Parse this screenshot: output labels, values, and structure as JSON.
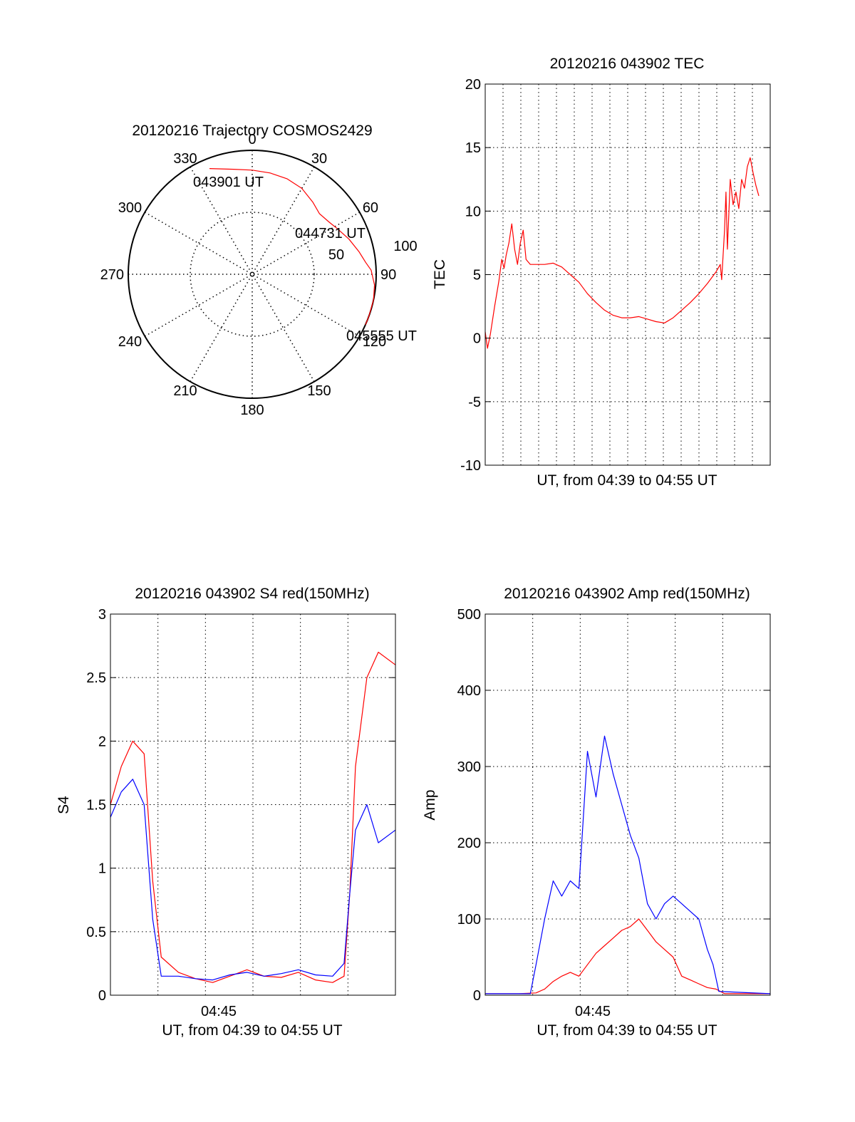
{
  "colors": {
    "red": "#ff0000",
    "blue": "#0000ff",
    "axis": "#000000",
    "grid": "#000000"
  },
  "chart_data": [
    {
      "id": "trajectory",
      "type": "polar",
      "title": "20120216 Trajectory COSMOS2429",
      "azimuth_ticks": [
        "0",
        "30",
        "60",
        "90",
        "120",
        "150",
        "180",
        "210",
        "240",
        "270",
        "300",
        "330"
      ],
      "radius_ticks": [
        "50",
        "100"
      ],
      "rlim": [
        0,
        100
      ],
      "grid": true,
      "series": [
        {
          "color": "red",
          "points": [
            [
              -22,
              92
            ],
            [
              -10,
              86
            ],
            [
              0,
              84
            ],
            [
              10,
              83
            ],
            [
              20,
              82
            ],
            [
              30,
              80
            ],
            [
              40,
              76
            ],
            [
              48,
              73
            ],
            [
              56,
              75
            ],
            [
              62,
              78
            ],
            [
              70,
              83
            ],
            [
              78,
              88
            ],
            [
              84,
              92
            ],
            [
              88,
              96
            ],
            [
              95,
              99
            ],
            [
              102,
              100
            ],
            [
              110,
              100
            ],
            [
              114,
              100
            ]
          ]
        }
      ],
      "annotations": [
        {
          "text": "043901 UT",
          "az": -18,
          "r": 98
        },
        {
          "text": "044731 UT",
          "az": 40,
          "r": 80
        },
        {
          "text": "045555 UT",
          "az": 113,
          "r": 102
        }
      ]
    },
    {
      "id": "tec",
      "type": "line",
      "title": "20120216 043902 TEC",
      "ylabel": "TEC",
      "xlabel": "UT, from 04:39 to 04:55 UT",
      "xlim": [
        "04:39:02",
        "04:55:40"
      ],
      "ylim": [
        -10,
        20
      ],
      "yticks": [
        "-10",
        "-5",
        "0",
        "5",
        "10",
        "15",
        "20"
      ],
      "xticks": [],
      "grid": true,
      "series": [
        {
          "color": "red",
          "points": [
            [
              "04:39:02",
              0.5
            ],
            [
              "04:39:10",
              -0.8
            ],
            [
              "04:39:20",
              0.3
            ],
            [
              "04:39:35",
              2.5
            ],
            [
              "04:39:50",
              4.5
            ],
            [
              "04:40:00",
              6.2
            ],
            [
              "04:40:08",
              5.5
            ],
            [
              "04:40:15",
              6.5
            ],
            [
              "04:40:25",
              7.5
            ],
            [
              "04:40:35",
              9.0
            ],
            [
              "04:40:45",
              7.0
            ],
            [
              "04:40:55",
              5.8
            ],
            [
              "04:41:05",
              7.5
            ],
            [
              "04:41:15",
              8.5
            ],
            [
              "04:41:25",
              6.2
            ],
            [
              "04:41:40",
              5.8
            ],
            [
              "04:42:30",
              5.8
            ],
            [
              "04:43:00",
              5.9
            ],
            [
              "04:43:30",
              5.6
            ],
            [
              "04:44:00",
              5.0
            ],
            [
              "04:44:30",
              4.4
            ],
            [
              "04:45:00",
              3.5
            ],
            [
              "04:45:30",
              2.8
            ],
            [
              "04:46:00",
              2.2
            ],
            [
              "04:46:30",
              1.8
            ],
            [
              "04:47:00",
              1.6
            ],
            [
              "04:47:30",
              1.6
            ],
            [
              "04:48:00",
              1.7
            ],
            [
              "04:48:30",
              1.5
            ],
            [
              "04:49:00",
              1.3
            ],
            [
              "04:49:30",
              1.2
            ],
            [
              "04:50:00",
              1.6
            ],
            [
              "04:50:30",
              2.2
            ],
            [
              "04:51:00",
              2.8
            ],
            [
              "04:51:30",
              3.5
            ],
            [
              "04:52:00",
              4.3
            ],
            [
              "04:52:30",
              5.2
            ],
            [
              "04:52:45",
              5.8
            ],
            [
              "04:52:50",
              4.6
            ],
            [
              "04:53:00",
              8.5
            ],
            [
              "04:53:05",
              11.5
            ],
            [
              "04:53:10",
              7.0
            ],
            [
              "04:53:20",
              12.5
            ],
            [
              "04:53:30",
              10.5
            ],
            [
              "04:53:40",
              11.5
            ],
            [
              "04:53:50",
              10.2
            ],
            [
              "04:54:00",
              12.5
            ],
            [
              "04:54:10",
              11.8
            ],
            [
              "04:54:20",
              13.5
            ],
            [
              "04:54:30",
              14.2
            ],
            [
              "04:54:40",
              13.0
            ],
            [
              "04:54:50",
              12.0
            ],
            [
              "04:55:00",
              11.2
            ]
          ]
        }
      ]
    },
    {
      "id": "s4",
      "type": "line",
      "title": "20120216 043902 S4 red(150MHz)",
      "ylabel": "S4",
      "xlabel": "UT, from 04:39 to 04:55 UT",
      "xlim": [
        "04:39:02",
        "04:55:40"
      ],
      "ylim": [
        0,
        3
      ],
      "yticks": [
        "0",
        "0.5",
        "1",
        "1.5",
        "2",
        "2.5",
        "3"
      ],
      "xticks": [
        "04:45"
      ],
      "grid": true,
      "series": [
        {
          "color": "red",
          "points": [
            [
              "04:39:02",
              1.5
            ],
            [
              "04:39:40",
              1.8
            ],
            [
              "04:40:20",
              2.0
            ],
            [
              "04:41:00",
              1.9
            ],
            [
              "04:41:30",
              0.9
            ],
            [
              "04:42:00",
              0.3
            ],
            [
              "04:43:00",
              0.18
            ],
            [
              "04:44:00",
              0.13
            ],
            [
              "04:45:00",
              0.1
            ],
            [
              "04:46:00",
              0.15
            ],
            [
              "04:47:00",
              0.2
            ],
            [
              "04:48:00",
              0.15
            ],
            [
              "04:49:00",
              0.14
            ],
            [
              "04:50:00",
              0.18
            ],
            [
              "04:51:00",
              0.12
            ],
            [
              "04:52:00",
              0.1
            ],
            [
              "04:52:40",
              0.15
            ],
            [
              "04:53:00",
              0.8
            ],
            [
              "04:53:20",
              1.8
            ],
            [
              "04:54:00",
              2.5
            ],
            [
              "04:54:40",
              2.7
            ],
            [
              "04:55:40",
              2.6
            ]
          ]
        },
        {
          "color": "blue",
          "points": [
            [
              "04:39:02",
              1.4
            ],
            [
              "04:39:40",
              1.6
            ],
            [
              "04:40:20",
              1.7
            ],
            [
              "04:41:00",
              1.5
            ],
            [
              "04:41:30",
              0.6
            ],
            [
              "04:42:00",
              0.15
            ],
            [
              "04:43:00",
              0.15
            ],
            [
              "04:44:00",
              0.13
            ],
            [
              "04:45:00",
              0.12
            ],
            [
              "04:46:00",
              0.16
            ],
            [
              "04:47:00",
              0.18
            ],
            [
              "04:48:00",
              0.15
            ],
            [
              "04:49:00",
              0.17
            ],
            [
              "04:50:00",
              0.2
            ],
            [
              "04:51:00",
              0.16
            ],
            [
              "04:52:00",
              0.15
            ],
            [
              "04:52:40",
              0.25
            ],
            [
              "04:53:00",
              0.8
            ],
            [
              "04:53:20",
              1.3
            ],
            [
              "04:54:00",
              1.5
            ],
            [
              "04:54:40",
              1.2
            ],
            [
              "04:55:40",
              1.3
            ]
          ]
        }
      ]
    },
    {
      "id": "amp",
      "type": "line",
      "title": "20120216 043902 Amp red(150MHz)",
      "ylabel": "Amp",
      "xlabel": "UT, from 04:39 to 04:55 UT",
      "xlim": [
        "04:39:02",
        "04:55:40"
      ],
      "ylim": [
        0,
        500
      ],
      "yticks": [
        "0",
        "100",
        "200",
        "300",
        "400",
        "500"
      ],
      "xticks": [
        "04:45"
      ],
      "grid": true,
      "series": [
        {
          "color": "red",
          "points": [
            [
              "04:39:02",
              2
            ],
            [
              "04:41:00",
              2
            ],
            [
              "04:42:00",
              3
            ],
            [
              "04:42:30",
              8
            ],
            [
              "04:43:00",
              18
            ],
            [
              "04:43:30",
              25
            ],
            [
              "04:44:00",
              30
            ],
            [
              "04:44:30",
              25
            ],
            [
              "04:45:00",
              40
            ],
            [
              "04:45:30",
              55
            ],
            [
              "04:46:00",
              65
            ],
            [
              "04:46:30",
              75
            ],
            [
              "04:47:00",
              85
            ],
            [
              "04:47:30",
              90
            ],
            [
              "04:48:00",
              100
            ],
            [
              "04:48:30",
              85
            ],
            [
              "04:49:00",
              70
            ],
            [
              "04:49:30",
              60
            ],
            [
              "04:50:00",
              50
            ],
            [
              "04:50:30",
              25
            ],
            [
              "04:51:00",
              20
            ],
            [
              "04:51:30",
              15
            ],
            [
              "04:52:00",
              10
            ],
            [
              "04:52:30",
              8
            ],
            [
              "04:53:00",
              2
            ],
            [
              "04:55:40",
              2
            ]
          ]
        },
        {
          "color": "blue",
          "points": [
            [
              "04:39:02",
              2
            ],
            [
              "04:41:40",
              2
            ],
            [
              "04:42:00",
              40
            ],
            [
              "04:42:30",
              100
            ],
            [
              "04:43:00",
              150
            ],
            [
              "04:43:30",
              130
            ],
            [
              "04:44:00",
              150
            ],
            [
              "04:44:30",
              140
            ],
            [
              "04:45:00",
              320
            ],
            [
              "04:45:30",
              260
            ],
            [
              "04:46:00",
              340
            ],
            [
              "04:46:30",
              290
            ],
            [
              "04:47:00",
              250
            ],
            [
              "04:47:30",
              210
            ],
            [
              "04:48:00",
              180
            ],
            [
              "04:48:30",
              120
            ],
            [
              "04:49:00",
              100
            ],
            [
              "04:49:30",
              120
            ],
            [
              "04:50:00",
              130
            ],
            [
              "04:50:30",
              120
            ],
            [
              "04:51:00",
              110
            ],
            [
              "04:51:30",
              100
            ],
            [
              "04:52:00",
              60
            ],
            [
              "04:52:20",
              40
            ],
            [
              "04:52:40",
              5
            ],
            [
              "04:55:40",
              2
            ]
          ]
        }
      ]
    }
  ]
}
